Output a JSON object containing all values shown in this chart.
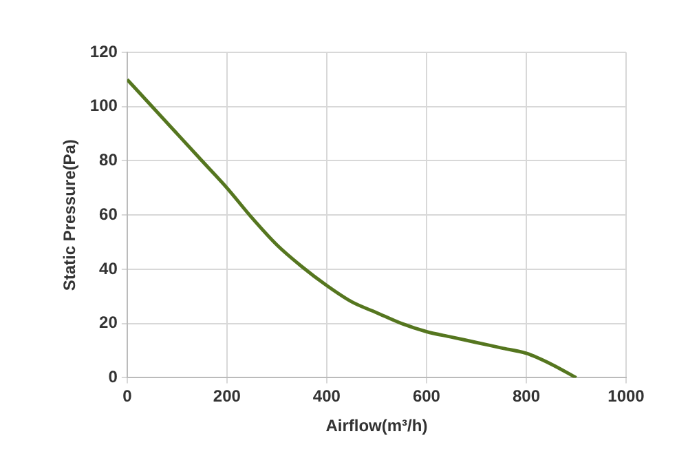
{
  "chart_data": {
    "type": "line",
    "xlabel": "Airflow(m³/h)",
    "ylabel": "Static Pressure(Pa)",
    "x": [
      0,
      50,
      100,
      150,
      200,
      250,
      300,
      350,
      400,
      450,
      500,
      550,
      600,
      650,
      700,
      750,
      800,
      850,
      900
    ],
    "series": [
      {
        "color": "#55761f",
        "values": [
          110,
          100,
          90,
          80,
          70,
          59,
          49,
          41,
          34,
          28,
          24,
          20,
          17,
          15,
          13,
          11,
          9,
          5,
          0
        ]
      }
    ],
    "xlim": [
      0,
      1000
    ],
    "xticks": [
      0,
      200,
      400,
      600,
      800,
      1000
    ],
    "ylim": [
      0,
      120
    ],
    "yticks": [
      0,
      20,
      40,
      60,
      80,
      100,
      120
    ],
    "grid": true,
    "legend": false,
    "marker": "none",
    "line_style": "solid"
  }
}
